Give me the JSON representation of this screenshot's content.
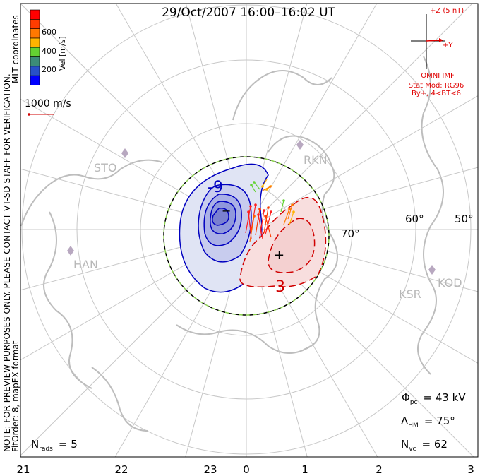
{
  "title": "29/Oct/2007 16:00–16:02 UT",
  "side_notes": {
    "note": "NOTE: FOR PREVIEW PURPOSES ONLY. PLEASE CONTACT VT-SD STAFF FOR VERIFICATION.",
    "coords": "MLT coordinates",
    "fit": "FitOrder: 8, mapEX format"
  },
  "colorbar": {
    "label": "Vel [m/s]",
    "ticks": [
      "200",
      "400",
      "600"
    ],
    "colors": [
      "#0000ff",
      "#2850c8",
      "#3c8c78",
      "#64d232",
      "#ffb400",
      "#ff7800",
      "#ff3c00",
      "#ff0000"
    ]
  },
  "scale_vector": {
    "label": "1000 m/s"
  },
  "imf": {
    "z_label": "+Z (5 nT)",
    "y_label": "+Y",
    "source": "OMNI IMF",
    "model": "Stat Mod: RG96",
    "condition": "By+, 4<BT<6",
    "color": "#e00000"
  },
  "latitudes": [
    "70°",
    "60°",
    "50°"
  ],
  "mlt_labels": [
    "21",
    "22",
    "23",
    "0",
    "1",
    "2",
    "3"
  ],
  "stations": [
    "STO",
    "RKN",
    "HAN",
    "KSR",
    "KOD"
  ],
  "contours": {
    "negative_label": "-9",
    "positive_label": "3",
    "min_marker": "−",
    "max_marker": "+"
  },
  "stats": {
    "phi_pc": {
      "symbol": "Φ",
      "sub": "pc",
      "value": "= 43 kV"
    },
    "lambda_hm": {
      "symbol": "Λ",
      "sub": "HM",
      "value": "= 75°"
    },
    "n_vc": {
      "symbol": "N",
      "sub": "vc",
      "value": "= 62"
    },
    "n_rads": {
      "symbol": "N",
      "sub": "rads",
      "value": "= 5"
    }
  }
}
